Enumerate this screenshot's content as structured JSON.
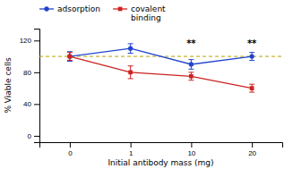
{
  "chart_data": {
    "type": "line",
    "categories": [
      "0",
      "1",
      "10",
      "20"
    ],
    "series": [
      {
        "name": "adsorption",
        "color": "#2244cc",
        "marker": "circle",
        "values": [
          100,
          110,
          90,
          100
        ],
        "errors": [
          6,
          6,
          6,
          5
        ]
      },
      {
        "name": "covalent\nbinding",
        "color": "#cc2222",
        "marker": "square",
        "values": [
          100,
          80,
          75,
          60
        ],
        "errors": [
          5,
          8,
          5,
          5
        ]
      }
    ],
    "xlabel": "Initial antibody mass (mg)",
    "ylabel": "% Viable cells",
    "ylim": [
      -8,
      135
    ],
    "yticks": [
      0,
      40,
      80,
      120
    ],
    "hlines": [
      {
        "value": 100,
        "color": "#b8a000",
        "line_style": "dashed"
      }
    ],
    "annotations": [
      {
        "text": "**",
        "x": "10",
        "y": 113
      },
      {
        "text": "**",
        "x": "20",
        "y": 113
      }
    ],
    "legend": "top",
    "grid": false
  }
}
